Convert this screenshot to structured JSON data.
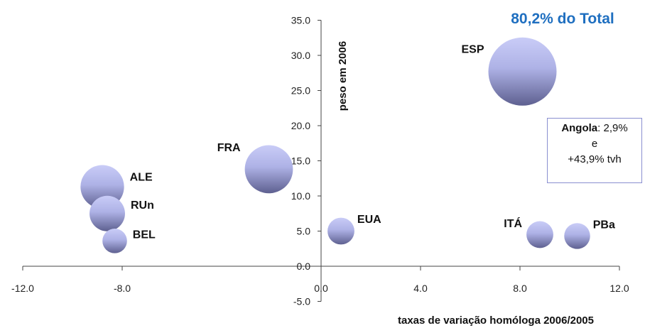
{
  "chart_data": {
    "type": "bubble",
    "title": "80,2% do Total",
    "title_color": "#1f6fc0",
    "xlabel": "taxas de variação homóloga 2006/2005",
    "ylabel": "peso em 2006",
    "xlim": [
      -12,
      12
    ],
    "ylim": [
      -5,
      35
    ],
    "x_ticks": [
      "-12.0",
      "-8.0",
      "0.0",
      "4.0",
      "8.0",
      "12.0"
    ],
    "x_tick_values": [
      -12,
      -8,
      0,
      4,
      8,
      12
    ],
    "y_ticks": [
      "-5.0",
      "0.0",
      "5.0",
      "10.0",
      "15.0",
      "20.0",
      "25.0",
      "30.0",
      "35.0"
    ],
    "y_tick_values": [
      -5,
      0,
      5,
      10,
      15,
      20,
      25,
      30,
      35
    ],
    "bubble_color_top": "#c9ccf7",
    "bubble_color_bottom": "#5e6090",
    "points": [
      {
        "label": "ESP",
        "x": 8.1,
        "y": 27.7,
        "size": 27.7
      },
      {
        "label": "FRA",
        "x": -2.1,
        "y": 13.8,
        "size": 13.8
      },
      {
        "label": "ALE",
        "x": -8.8,
        "y": 11.3,
        "size": 11.3
      },
      {
        "label": "RUn",
        "x": -8.6,
        "y": 7.5,
        "size": 7.5
      },
      {
        "label": "BEL",
        "x": -8.3,
        "y": 3.6,
        "size": 3.6
      },
      {
        "label": "EUA",
        "x": 0.8,
        "y": 5.0,
        "size": 4.3
      },
      {
        "label": "ITÁ",
        "x": 8.8,
        "y": 4.5,
        "size": 4.3
      },
      {
        "label": "PBa",
        "x": 10.3,
        "y": 4.3,
        "size": 4.0
      }
    ]
  },
  "note": {
    "bold": "Angola",
    "line1_rest": ": 2,9%",
    "line2": "e",
    "line3": "+43,9% tvh"
  }
}
